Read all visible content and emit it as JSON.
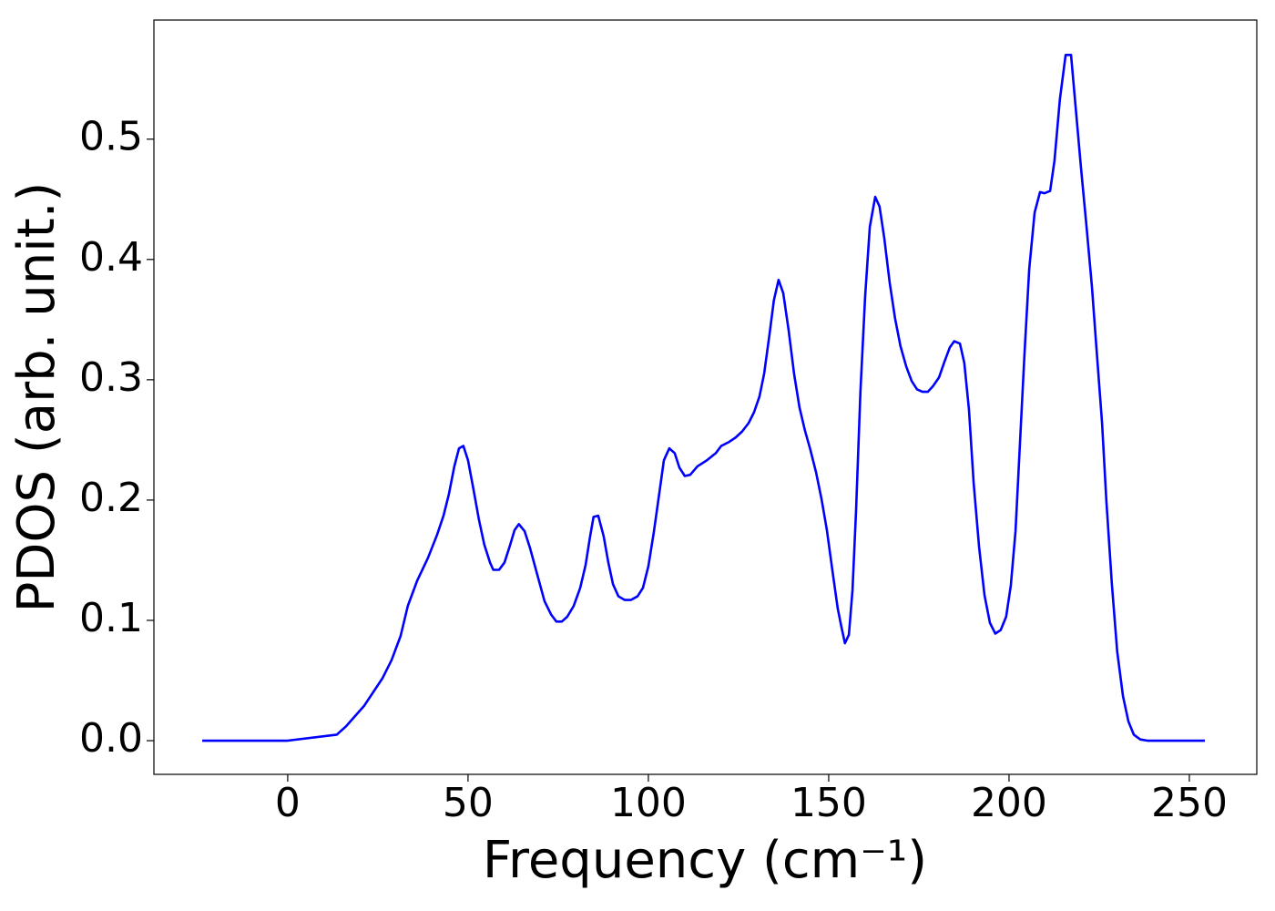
{
  "chart_data": {
    "type": "line",
    "xlabel": "Frequency (cm⁻¹)",
    "ylabel": "PDOS (arb. unit.)",
    "color": "#0000ff",
    "x": [
      -23.7,
      0,
      13.6,
      16.2,
      21.2,
      26.3,
      28.8,
      31.3,
      33.3,
      35.9,
      38.9,
      41.4,
      43.2,
      44.7,
      46.2,
      47.5,
      48.7,
      50,
      51.5,
      53,
      54.5,
      56.1,
      57,
      58.6,
      60.1,
      61.6,
      62.9,
      64.1,
      65.7,
      67.2,
      69.2,
      71.2,
      73,
      74.5,
      76,
      77.5,
      79.3,
      81.1,
      82.6,
      83.8,
      84.8,
      86.1,
      87.6,
      88.9,
      90.2,
      91.7,
      93.4,
      95.2,
      97,
      98.5,
      100,
      101.5,
      103,
      104.3,
      105.8,
      107.3,
      108.6,
      110.1,
      111.6,
      113.6,
      116.2,
      118.7,
      120.2,
      122.2,
      124.2,
      126,
      127.8,
      129.3,
      130.8,
      132.1,
      133.6,
      134.8,
      136.1,
      137.4,
      138.9,
      140.4,
      141.9,
      143.4,
      144.9,
      146.5,
      148,
      149.5,
      151,
      152.5,
      153.5,
      154.5,
      155.6,
      156.6,
      157.6,
      158.8,
      160.1,
      161.4,
      162.9,
      164.1,
      165.4,
      166.9,
      168.4,
      169.9,
      171.5,
      173,
      174.5,
      176,
      177.5,
      179,
      180.6,
      182.1,
      183.6,
      184.8,
      186.4,
      187.6,
      188.9,
      190.2,
      191.7,
      193.2,
      194.7,
      196.2,
      197.7,
      199.2,
      200.5,
      201.8,
      203,
      204.3,
      205.6,
      207.1,
      208.6,
      209.8,
      211.4,
      212.6,
      214.1,
      215.7,
      217.2,
      218.4,
      219.9,
      221.5,
      223,
      224.2,
      225.8,
      227,
      228.5,
      230,
      231.6,
      233.1,
      234.6,
      236.4,
      238.4,
      254.3
    ],
    "values": [
      0,
      0,
      0.005,
      0.012,
      0.029,
      0.052,
      0.067,
      0.087,
      0.112,
      0.133,
      0.152,
      0.171,
      0.187,
      0.205,
      0.228,
      0.243,
      0.245,
      0.233,
      0.209,
      0.184,
      0.163,
      0.148,
      0.142,
      0.142,
      0.148,
      0.162,
      0.175,
      0.18,
      0.174,
      0.16,
      0.138,
      0.116,
      0.105,
      0.099,
      0.099,
      0.103,
      0.112,
      0.127,
      0.146,
      0.169,
      0.186,
      0.187,
      0.17,
      0.148,
      0.13,
      0.12,
      0.117,
      0.117,
      0.12,
      0.127,
      0.145,
      0.173,
      0.205,
      0.233,
      0.243,
      0.239,
      0.227,
      0.22,
      0.221,
      0.228,
      0.233,
      0.239,
      0.245,
      0.248,
      0.252,
      0.257,
      0.264,
      0.273,
      0.286,
      0.305,
      0.338,
      0.366,
      0.383,
      0.372,
      0.341,
      0.305,
      0.277,
      0.258,
      0.242,
      0.223,
      0.201,
      0.175,
      0.142,
      0.11,
      0.095,
      0.081,
      0.088,
      0.125,
      0.192,
      0.29,
      0.369,
      0.427,
      0.452,
      0.444,
      0.418,
      0.381,
      0.351,
      0.328,
      0.311,
      0.299,
      0.292,
      0.29,
      0.29,
      0.295,
      0.302,
      0.315,
      0.327,
      0.332,
      0.33,
      0.314,
      0.275,
      0.214,
      0.161,
      0.121,
      0.098,
      0.089,
      0.092,
      0.103,
      0.129,
      0.174,
      0.245,
      0.322,
      0.392,
      0.439,
      0.456,
      0.455,
      0.457,
      0.482,
      0.533,
      0.57,
      0.57,
      0.529,
      0.478,
      0.427,
      0.377,
      0.328,
      0.264,
      0.199,
      0.131,
      0.074,
      0.037,
      0.016,
      0.005,
      0.001,
      0,
      0
    ],
    "xlim": [
      -37.1,
      268.7
    ],
    "ylim": [
      -0.028,
      0.599
    ],
    "xticks": [
      0,
      50,
      100,
      150,
      200,
      250
    ],
    "yticks": [
      {
        "value": 0,
        "label": "0.0"
      },
      0.1,
      0.2,
      0.3,
      0.4,
      0.5
    ]
  }
}
